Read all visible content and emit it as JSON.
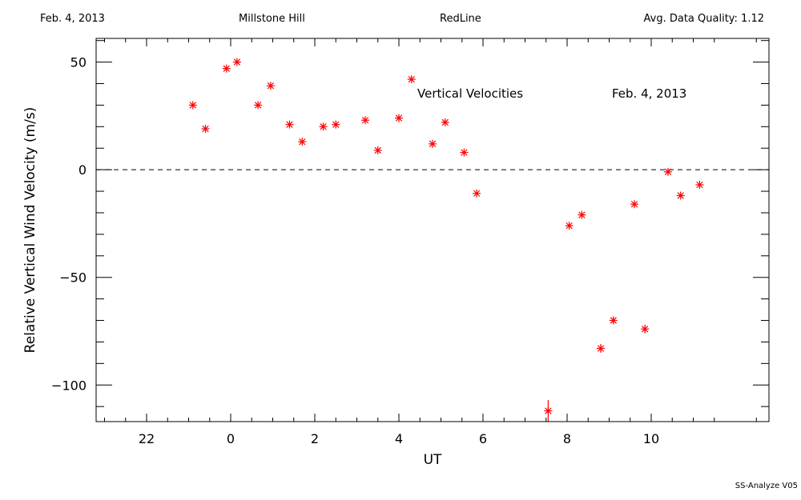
{
  "header": {
    "date": "Feb. 4, 2013",
    "station": "Millstone Hill",
    "instrument": "RedLine",
    "quality": "Avg. Data Quality: 1.12"
  },
  "footer": "SS-Analyze V05",
  "chart_data": {
    "type": "scatter",
    "title": "Vertical Velocities",
    "annotation": "Feb. 4, 2013",
    "xlabel": "UT",
    "ylabel": "Relative Vertical Wind Velocity (m/s)",
    "x_ticks": [
      22,
      0,
      2,
      4,
      6,
      8,
      10
    ],
    "y_ticks": [
      50,
      0,
      -50,
      -100
    ],
    "xlim": [
      -3.2,
      12.8
    ],
    "ylim": [
      -117,
      61
    ],
    "grid": false,
    "zero_line": "dashed",
    "marker_color": "#ff0000",
    "points": [
      {
        "x": -0.9,
        "y": 30
      },
      {
        "x": -0.6,
        "y": 19
      },
      {
        "x": -0.1,
        "y": 47
      },
      {
        "x": 0.15,
        "y": 50
      },
      {
        "x": 0.65,
        "y": 30
      },
      {
        "x": 0.95,
        "y": 39
      },
      {
        "x": 1.4,
        "y": 21
      },
      {
        "x": 1.7,
        "y": 13
      },
      {
        "x": 2.2,
        "y": 20
      },
      {
        "x": 2.5,
        "y": 21
      },
      {
        "x": 3.2,
        "y": 23
      },
      {
        "x": 3.5,
        "y": 9
      },
      {
        "x": 4.0,
        "y": 24
      },
      {
        "x": 4.3,
        "y": 42
      },
      {
        "x": 4.8,
        "y": 12
      },
      {
        "x": 5.1,
        "y": 22
      },
      {
        "x": 5.55,
        "y": 8
      },
      {
        "x": 5.85,
        "y": -11
      },
      {
        "x": 7.55,
        "y": -112,
        "err": 5
      },
      {
        "x": 8.05,
        "y": -26
      },
      {
        "x": 8.35,
        "y": -21
      },
      {
        "x": 8.8,
        "y": -83,
        "err": 2
      },
      {
        "x": 9.1,
        "y": -70,
        "err": 1.5
      },
      {
        "x": 9.6,
        "y": -16
      },
      {
        "x": 9.85,
        "y": -74,
        "err": 2
      },
      {
        "x": 10.4,
        "y": -1
      },
      {
        "x": 10.7,
        "y": -12
      },
      {
        "x": 11.15,
        "y": -7
      }
    ]
  }
}
